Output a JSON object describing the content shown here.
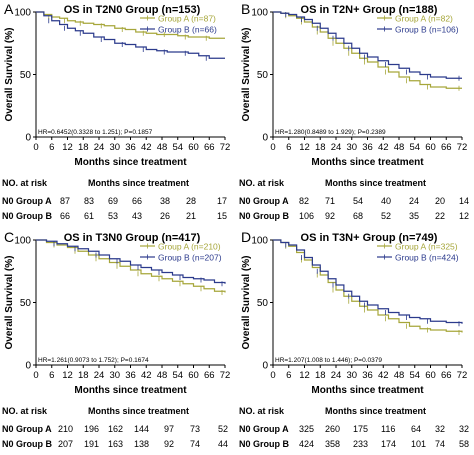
{
  "colors": {
    "group_a": "#a6a63a",
    "group_b": "#2b3a8c",
    "axis": "#000000"
  },
  "chart_data": [
    {
      "type": "line",
      "letter": "A",
      "title": "OS in T2N0 Group (n=153)",
      "xlabel": "Months since treatment",
      "ylabel": "Overall Survival (%)",
      "xlim": [
        0,
        72
      ],
      "ylim": [
        0,
        100
      ],
      "xticks": [
        0,
        6,
        12,
        18,
        24,
        30,
        36,
        42,
        48,
        54,
        60,
        66,
        72
      ],
      "yticks": [
        0,
        50,
        100
      ],
      "hr_text": "HR=0.6452(0.3328 to 1.251); P=0.1857",
      "series": [
        {
          "name": "Group A (n=87)",
          "color": "#a6a63a",
          "x": [
            0,
            3,
            6,
            9,
            12,
            15,
            18,
            22,
            26,
            30,
            34,
            38,
            42,
            46,
            50,
            54,
            58,
            62,
            66,
            72
          ],
          "y": [
            100,
            98,
            96,
            95,
            93,
            92,
            91,
            90,
            89,
            87,
            86,
            84,
            83,
            82,
            82,
            81,
            80,
            80,
            79,
            79
          ]
        },
        {
          "name": "Group B (n=66)",
          "color": "#2b3a8c",
          "x": [
            0,
            3,
            6,
            9,
            12,
            15,
            18,
            22,
            26,
            30,
            34,
            38,
            42,
            46,
            50,
            54,
            58,
            62,
            66,
            72
          ],
          "y": [
            100,
            97,
            93,
            90,
            87,
            85,
            83,
            80,
            78,
            75,
            74,
            72,
            70,
            69,
            68,
            68,
            67,
            65,
            63,
            63
          ]
        }
      ],
      "risk_title": "NO. at risk",
      "risk_header": "Months since treatment",
      "risk_rows": [
        {
          "label": "N0 Group A",
          "values": [
            "87",
            "83",
            "69",
            "66",
            "38",
            "28",
            "17"
          ]
        },
        {
          "label": "N0 Group B",
          "values": [
            "66",
            "61",
            "53",
            "43",
            "26",
            "21",
            "15"
          ]
        }
      ]
    },
    {
      "type": "line",
      "letter": "B",
      "title": "OS in T2N+ Group (n=188)",
      "xlabel": "Months since treatment",
      "ylabel": "Overall Survival (%)",
      "xlim": [
        0,
        72
      ],
      "ylim": [
        0,
        100
      ],
      "xticks": [
        0,
        6,
        12,
        18,
        24,
        30,
        36,
        42,
        48,
        54,
        60,
        66,
        72
      ],
      "yticks": [
        0,
        50,
        100
      ],
      "hr_text": "HR=1.280(0.8489 to 1.929); P=0.2389",
      "series": [
        {
          "name": "Group A (n=82)",
          "color": "#a6a63a",
          "x": [
            0,
            3,
            6,
            9,
            12,
            15,
            18,
            21,
            24,
            27,
            30,
            33,
            36,
            40,
            44,
            48,
            52,
            56,
            60,
            66,
            72
          ],
          "y": [
            100,
            99,
            97,
            95,
            92,
            88,
            84,
            79,
            75,
            71,
            67,
            63,
            60,
            56,
            52,
            48,
            45,
            42,
            40,
            39,
            39
          ]
        },
        {
          "name": "Group B (n=106)",
          "color": "#2b3a8c",
          "x": [
            0,
            3,
            6,
            9,
            12,
            15,
            18,
            21,
            24,
            27,
            30,
            33,
            36,
            40,
            44,
            48,
            52,
            56,
            60,
            66,
            72
          ],
          "y": [
            100,
            99,
            98,
            96,
            94,
            91,
            87,
            83,
            79,
            75,
            71,
            67,
            64,
            61,
            58,
            55,
            52,
            50,
            48,
            47,
            47
          ]
        }
      ],
      "risk_title": "NO. at risk",
      "risk_header": "Months since treatment",
      "risk_rows": [
        {
          "label": "N0 Group A",
          "values": [
            "82",
            "71",
            "54",
            "40",
            "24",
            "20",
            "14"
          ]
        },
        {
          "label": "N0 Group B",
          "values": [
            "106",
            "92",
            "68",
            "52",
            "35",
            "22",
            "12"
          ]
        }
      ]
    },
    {
      "type": "line",
      "letter": "C",
      "title": "OS in T3N0 Group (n=417)",
      "xlabel": "Months since treatment",
      "ylabel": "Overall Survival (%)",
      "xlim": [
        0,
        72
      ],
      "ylim": [
        0,
        100
      ],
      "xticks": [
        0,
        6,
        12,
        18,
        24,
        30,
        36,
        42,
        48,
        54,
        60,
        66,
        72
      ],
      "yticks": [
        0,
        50,
        100
      ],
      "hr_text": "HR=1.261(0.9073 to 1.752); P=0.1674",
      "series": [
        {
          "name": "Group A (n=210)",
          "color": "#a6a63a",
          "x": [
            0,
            4,
            8,
            12,
            16,
            20,
            24,
            28,
            32,
            36,
            40,
            44,
            48,
            52,
            56,
            60,
            64,
            68,
            72
          ],
          "y": [
            100,
            98,
            96,
            94,
            91,
            88,
            85,
            82,
            79,
            76,
            73,
            71,
            69,
            67,
            65,
            63,
            61,
            59,
            58
          ]
        },
        {
          "name": "Group B (n=207)",
          "color": "#2b3a8c",
          "x": [
            0,
            4,
            8,
            12,
            16,
            20,
            24,
            28,
            32,
            36,
            40,
            44,
            48,
            52,
            56,
            60,
            64,
            68,
            72
          ],
          "y": [
            100,
            99,
            97,
            95,
            93,
            91,
            88,
            85,
            83,
            80,
            78,
            76,
            74,
            72,
            70,
            69,
            68,
            66,
            65
          ]
        }
      ],
      "risk_title": "NO. at risk",
      "risk_header": "Months since treatment",
      "risk_rows": [
        {
          "label": "N0 Group A",
          "values": [
            "210",
            "196",
            "162",
            "144",
            "97",
            "73",
            "52"
          ]
        },
        {
          "label": "N0 Group B",
          "values": [
            "207",
            "191",
            "163",
            "138",
            "92",
            "74",
            "44"
          ]
        }
      ]
    },
    {
      "type": "line",
      "letter": "D",
      "title": "OS in T3N+ Group (n=749)",
      "xlabel": "Months since treatment",
      "ylabel": "Overall Survival (%)",
      "xlim": [
        0,
        72
      ],
      "ylim": [
        0,
        100
      ],
      "xticks": [
        0,
        6,
        12,
        18,
        24,
        30,
        36,
        42,
        48,
        54,
        60,
        66,
        72
      ],
      "yticks": [
        0,
        50,
        100
      ],
      "hr_text": "HR=1.207(1.008 to 1.446); P=0.0379",
      "series": [
        {
          "name": "Group A (n=325)",
          "color": "#a6a63a",
          "x": [
            0,
            3,
            6,
            9,
            12,
            15,
            18,
            21,
            24,
            27,
            30,
            33,
            36,
            40,
            44,
            48,
            52,
            56,
            60,
            66,
            72
          ],
          "y": [
            100,
            98,
            95,
            90,
            84,
            78,
            72,
            66,
            60,
            55,
            51,
            47,
            44,
            40,
            37,
            34,
            31,
            29,
            28,
            27,
            26
          ]
        },
        {
          "name": "Group B (n=424)",
          "color": "#2b3a8c",
          "x": [
            0,
            3,
            6,
            9,
            12,
            15,
            18,
            21,
            24,
            27,
            30,
            33,
            36,
            40,
            44,
            48,
            52,
            56,
            60,
            66,
            72
          ],
          "y": [
            100,
            98,
            96,
            92,
            86,
            80,
            75,
            69,
            64,
            59,
            55,
            51,
            48,
            45,
            42,
            40,
            38,
            37,
            35,
            34,
            33
          ]
        }
      ],
      "risk_title": "NO. at risk",
      "risk_header": "Months since treatment",
      "risk_rows": [
        {
          "label": "N0 Group A",
          "values": [
            "325",
            "260",
            "175",
            "116",
            "64",
            "32",
            "32"
          ]
        },
        {
          "label": "N0 Group B",
          "values": [
            "424",
            "358",
            "233",
            "174",
            "101",
            "74",
            "58"
          ]
        }
      ]
    }
  ]
}
